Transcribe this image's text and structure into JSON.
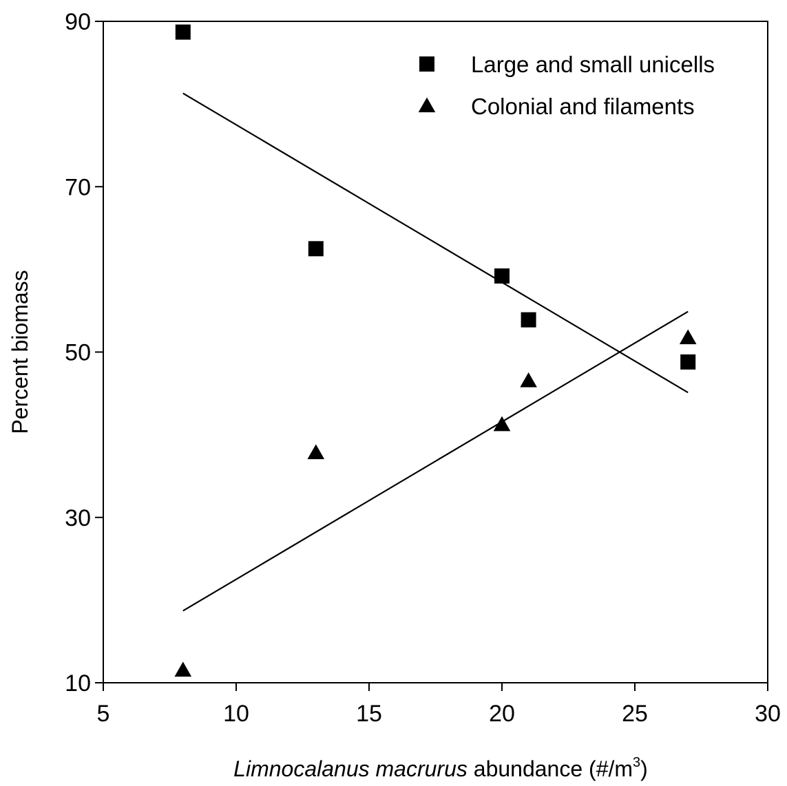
{
  "chart_data": {
    "type": "scatter",
    "xlim": [
      5,
      30
    ],
    "ylim": [
      10,
      90
    ],
    "xticks": [
      "5",
      "10",
      "15",
      "20",
      "25",
      "30"
    ],
    "yticks": [
      "10",
      "30",
      "50",
      "70",
      "90"
    ],
    "xlabel_italic": "Limnocalanus macrurus",
    "xlabel_rest": " abundance (#/m",
    "xlabel_sup": "3",
    "xlabel_close": ")",
    "ylabel": "Percent biomass",
    "grid": false,
    "legend_position": "top-right",
    "series": [
      {
        "name": "Large and small unicells",
        "marker": "square",
        "x": [
          8,
          13,
          20,
          21,
          27
        ],
        "y": [
          88.7,
          62.5,
          59.2,
          53.9,
          48.8
        ],
        "trend": {
          "x": [
            8,
            27
          ],
          "y": [
            81.3,
            45.1
          ]
        }
      },
      {
        "name": "Colonial and filaments",
        "marker": "triangle",
        "x": [
          8,
          13,
          20,
          21,
          27
        ],
        "y": [
          11.5,
          37.8,
          41.2,
          46.5,
          51.7
        ],
        "trend": {
          "x": [
            8,
            27
          ],
          "y": [
            18.7,
            54.9
          ]
        }
      }
    ]
  }
}
